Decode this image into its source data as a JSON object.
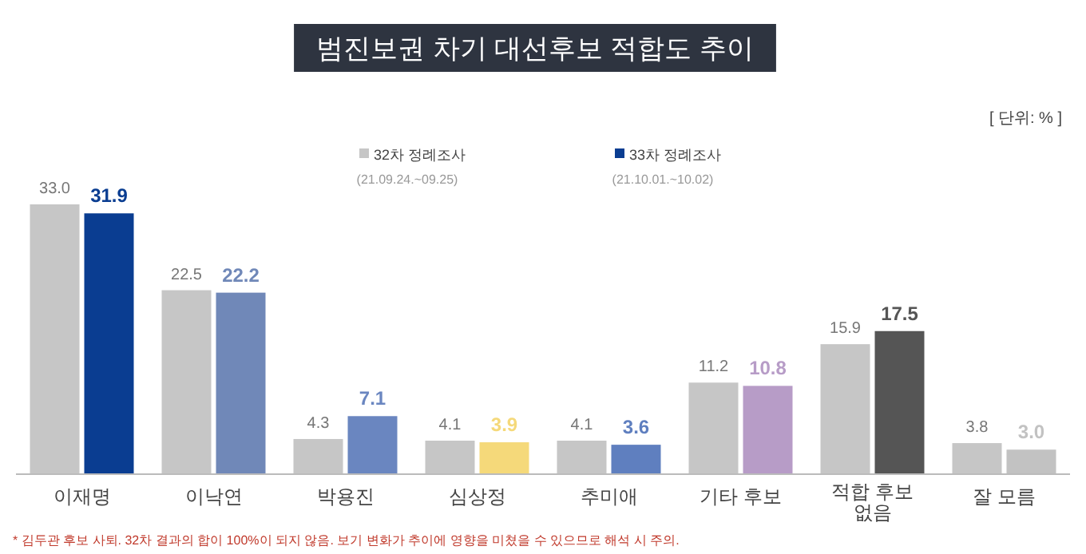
{
  "chart_data": {
    "type": "bar",
    "title": "범진보권 차기 대선후보 적합도 추이",
    "categories": [
      "이재명",
      "이낙연",
      "박용진",
      "심상정",
      "추미애",
      "기타 후보",
      "적합 후보 없음",
      "잘 모름"
    ],
    "series": [
      {
        "name": "32차 정례조사",
        "color": "#c6c6c6",
        "values": [
          33.0,
          22.5,
          4.3,
          4.1,
          4.1,
          11.2,
          15.9,
          3.8
        ],
        "value_labels": [
          "33.0",
          "22.5",
          "4.3",
          "4.1",
          "4.1",
          "11.2",
          "15.9",
          "3.8"
        ]
      },
      {
        "name": "33차 정례조사",
        "color": "#0a3d91",
        "colors": [
          "#0a3d91",
          "#7088b8",
          "#6a86c0",
          "#f5d97a",
          "#5f7fbf",
          "#b79cc7",
          "#555555",
          "#c2c2c2"
        ],
        "values": [
          31.9,
          22.2,
          7.1,
          3.9,
          3.6,
          10.8,
          17.5,
          3.0
        ],
        "value_labels": [
          "31.9",
          "22.2",
          "7.1",
          "3.9",
          "3.6",
          "10.8",
          "17.5",
          "3.0"
        ]
      }
    ],
    "annotations": [
      "[ 단위: % ]",
      "(21.09.24.~09.25)",
      "(21.10.01.~10.02)",
      "* 김두관 후보 사퇴. 32차 결과의 합이 100%이 되지 않음. 보기 변화가 추이에 영향을 미쳤을 수 있으므로 해석 시 주의."
    ],
    "legend": "top"
  }
}
